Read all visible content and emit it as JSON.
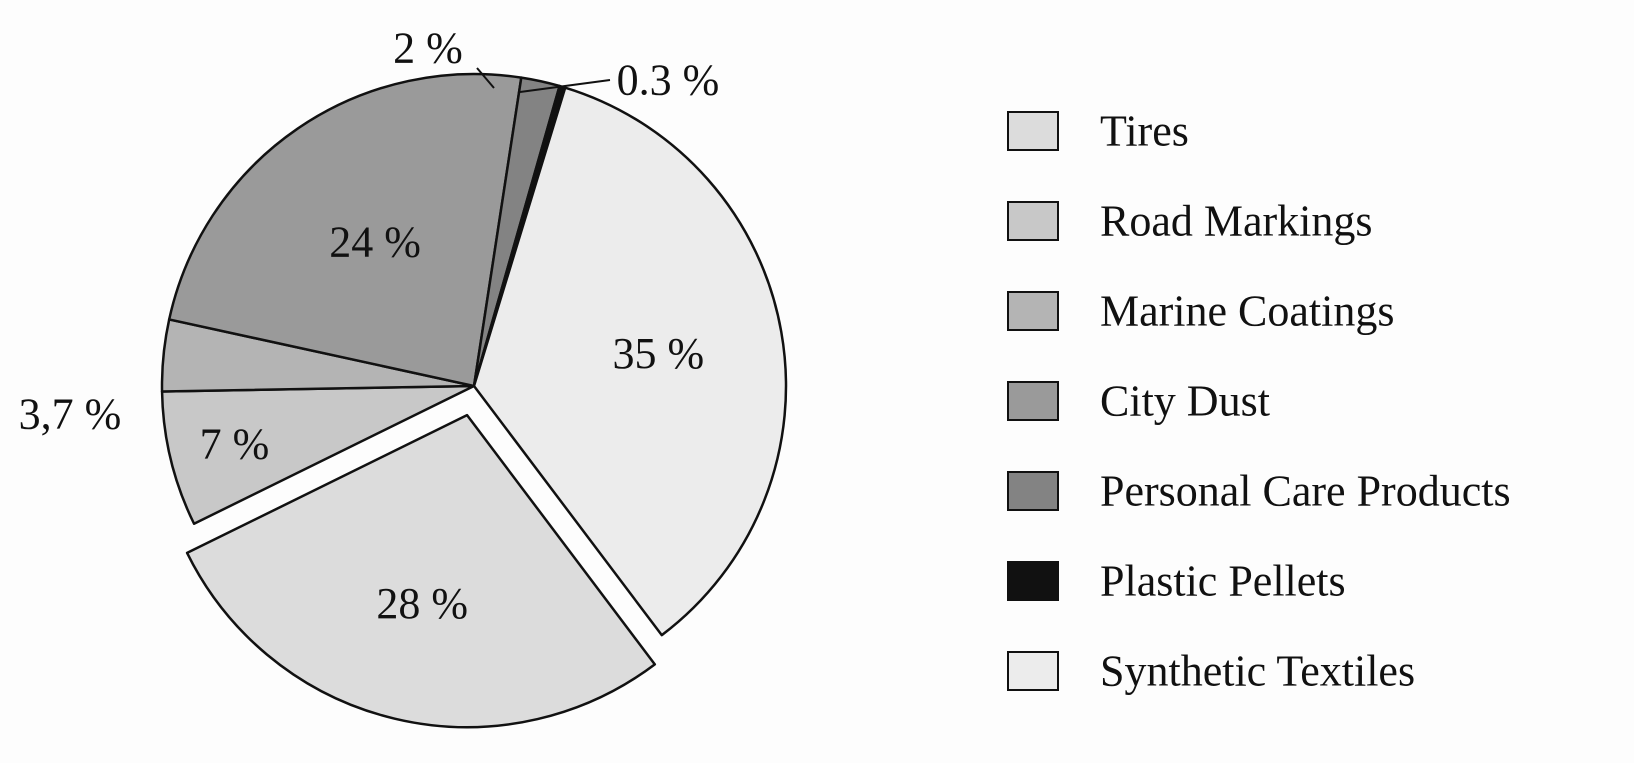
{
  "chart_data": {
    "type": "pie",
    "title": "",
    "slices": [
      {
        "name": "Tires",
        "value": 28,
        "label": "28 %",
        "color": "#dcdcdc",
        "exploded": true
      },
      {
        "name": "Road Markings",
        "value": 7,
        "label": "7 %",
        "color": "#c8c8c8",
        "exploded": false
      },
      {
        "name": "Marine Coatings",
        "value": 3.7,
        "label": "3,7 %",
        "color": "#b4b4b4",
        "exploded": false
      },
      {
        "name": "City Dust",
        "value": 24,
        "label": "24 %",
        "color": "#9a9a9a",
        "exploded": false
      },
      {
        "name": "Personal Care Products",
        "value": 2,
        "label": "2 %",
        "color": "#838383",
        "exploded": false
      },
      {
        "name": "Plastic Pellets",
        "value": 0.3,
        "label": "0.3 %",
        "color": "#111111",
        "exploded": false
      },
      {
        "name": "Synthetic Textiles",
        "value": 35,
        "label": "35 %",
        "color": "#ececec",
        "exploded": false
      }
    ],
    "legend_position": "right"
  }
}
